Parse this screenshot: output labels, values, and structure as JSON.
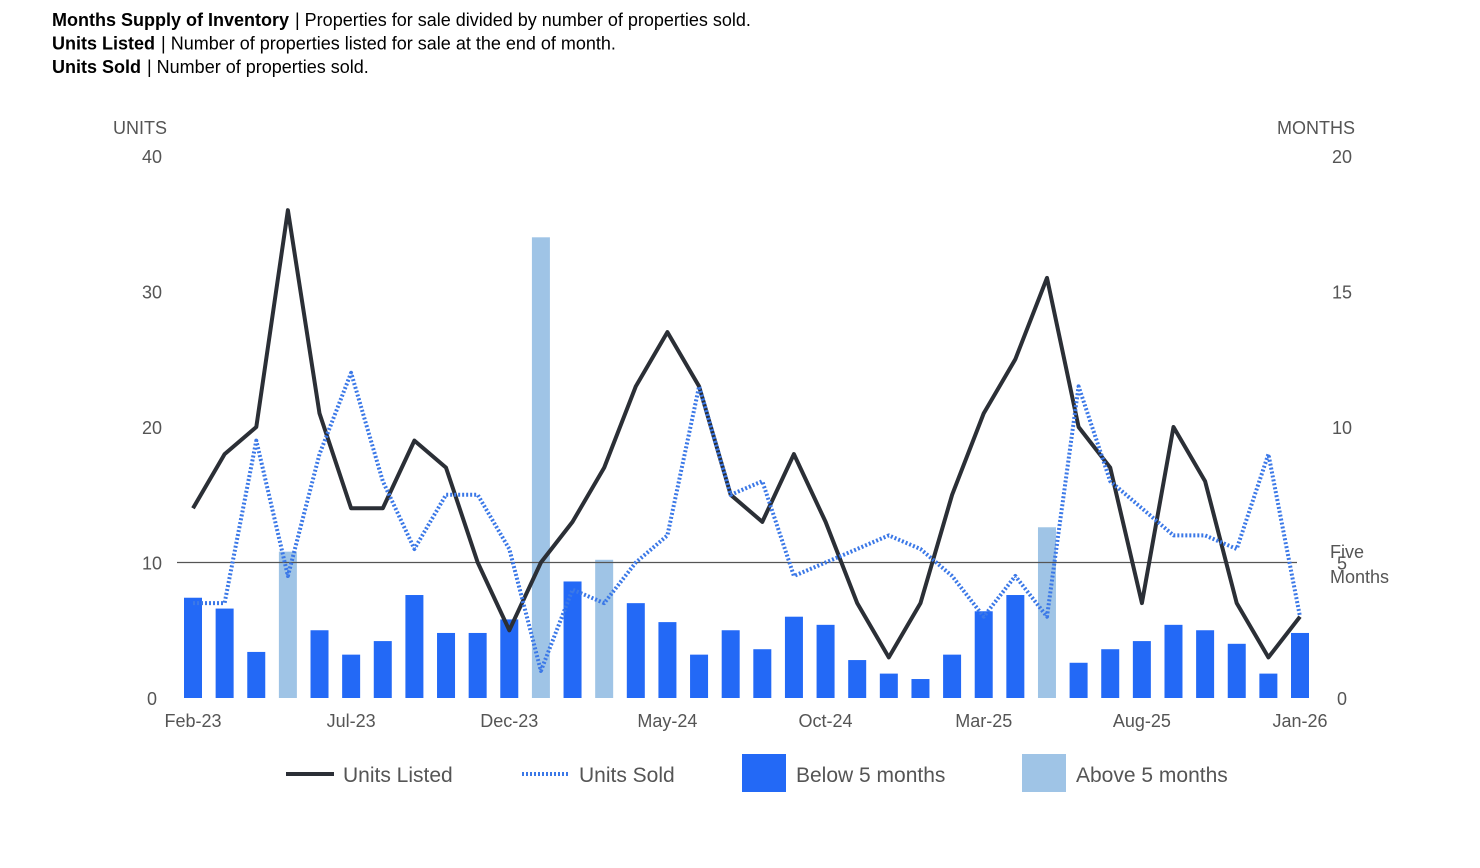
{
  "header": [
    {
      "term": "Months Supply of Inventory",
      "definition": "| Properties for sale divided by number of properties sold."
    },
    {
      "term": "Units Listed",
      "definition": "| Number of properties listed for sale at the end of month."
    },
    {
      "term": "Units Sold",
      "definition": "| Number of properties sold."
    }
  ],
  "chart_data": {
    "type": "combo",
    "y_axis_title": "UNITS",
    "y2_axis_title": "MONTHS",
    "categories": [
      "Feb-23",
      null,
      null,
      null,
      null,
      "Jul-23",
      null,
      null,
      null,
      null,
      "Dec-23",
      null,
      null,
      null,
      null,
      "May-24",
      null,
      null,
      null,
      null,
      "Oct-24",
      null,
      null,
      null,
      null,
      "Mar-25",
      null,
      null,
      null,
      null,
      "Aug-25",
      null,
      null,
      null,
      null,
      "Jan-26"
    ],
    "series": [
      {
        "name": "Units Listed",
        "color": "#2b2f36",
        "style": "solid",
        "values": [
          14,
          18,
          20,
          36,
          21,
          14,
          14,
          19,
          17,
          10,
          5,
          10,
          13,
          17,
          23,
          27,
          23,
          15,
          13,
          18,
          13,
          7,
          3,
          7,
          15,
          21,
          25,
          31,
          20,
          17,
          7,
          20,
          16,
          7,
          3,
          6
        ]
      },
      {
        "name": "Units Sold",
        "color": "#3b78e7",
        "style": "dotted",
        "values": [
          7,
          7,
          19,
          9,
          18,
          24,
          16,
          11,
          15,
          15,
          11,
          2,
          8,
          7,
          10,
          12,
          23,
          15,
          16,
          9,
          10,
          11,
          12,
          11,
          9,
          6,
          9,
          6,
          23,
          16,
          14,
          12,
          12,
          11,
          18,
          6
        ]
      }
    ],
    "bars": {
      "axis": "y2",
      "values": [
        3.7,
        3.3,
        1.7,
        5.4,
        2.5,
        1.6,
        2.1,
        3.8,
        2.4,
        2.4,
        2.9,
        17.0,
        4.3,
        5.1,
        3.5,
        2.8,
        1.6,
        2.5,
        1.8,
        3.0,
        2.7,
        1.4,
        0.9,
        0.7,
        1.6,
        3.2,
        3.8,
        6.3,
        1.3,
        1.8,
        2.1,
        2.7,
        2.5,
        2.0,
        0.9,
        2.4
      ],
      "groups": [
        {
          "name": "Below 5 months",
          "color": "#2369f6"
        },
        {
          "name": "Above 5 months",
          "color": "#9fc4e6"
        }
      ]
    },
    "reference_line": {
      "value": 5,
      "axis": "y2",
      "label": "Five Months",
      "color": "#555555"
    },
    "ylim": [
      0,
      40
    ],
    "yticks": [
      0,
      10,
      20,
      30,
      40
    ],
    "y2lim": [
      0,
      20
    ],
    "y2ticks": [
      0,
      5,
      10,
      15,
      20
    ]
  }
}
